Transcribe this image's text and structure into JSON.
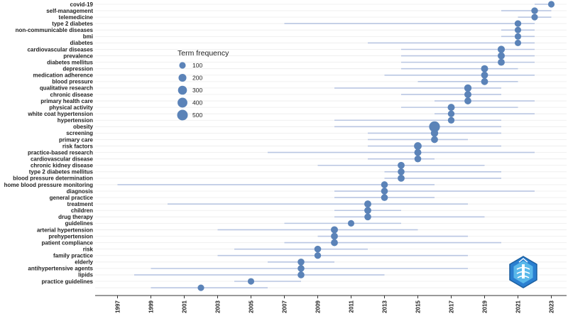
{
  "chart_data": {
    "type": "scatter",
    "chart_style": "trend-topics timeline (range line per term, dot at median year sized by frequency)",
    "xlim": [
      1996,
      2024
    ],
    "x_ticks": [
      1997,
      1999,
      2001,
      2003,
      2005,
      2007,
      2009,
      2011,
      2013,
      2015,
      2017,
      2019,
      2021,
      2023
    ],
    "colors": {
      "line": "#b9c6e2",
      "point": "#5b83b8",
      "grid": "#ececec",
      "axis": "#333333"
    },
    "legend": {
      "title": "Term frequency",
      "sizes": [
        100,
        200,
        300,
        400,
        500
      ],
      "position": "upper-left inside plot"
    },
    "terms": [
      {
        "term": "covid-19",
        "start": 2022,
        "median": 2023,
        "end": 2023,
        "freq": 100
      },
      {
        "term": "self-management",
        "start": 2020,
        "median": 2022,
        "end": 2023,
        "freq": 110
      },
      {
        "term": "telemedicine",
        "start": 2021,
        "median": 2022,
        "end": 2023,
        "freq": 100
      },
      {
        "term": "type 2 diabetes",
        "start": 2007,
        "median": 2021,
        "end": 2022,
        "freq": 110
      },
      {
        "term": "non-communicable diseases",
        "start": 2020,
        "median": 2021,
        "end": 2022,
        "freq": 100
      },
      {
        "term": "bmi",
        "start": 2020,
        "median": 2021,
        "end": 2022,
        "freq": 100
      },
      {
        "term": "diabetes",
        "start": 2012,
        "median": 2021,
        "end": 2022,
        "freq": 100
      },
      {
        "term": "cardiovascular diseases",
        "start": 2014,
        "median": 2020,
        "end": 2022,
        "freq": 150
      },
      {
        "term": "prevalence",
        "start": 2014,
        "median": 2020,
        "end": 2022,
        "freq": 140
      },
      {
        "term": "diabetes mellitus",
        "start": 2014,
        "median": 2020,
        "end": 2022,
        "freq": 130
      },
      {
        "term": "depression",
        "start": 2014,
        "median": 2019,
        "end": 2021,
        "freq": 140
      },
      {
        "term": "medication adherence",
        "start": 2013,
        "median": 2019,
        "end": 2022,
        "freq": 130
      },
      {
        "term": "blood pressure",
        "start": 2015,
        "median": 2019,
        "end": 2021,
        "freq": 130
      },
      {
        "term": "qualitative research",
        "start": 2010,
        "median": 2018,
        "end": 2020,
        "freq": 160
      },
      {
        "term": "chronic disease",
        "start": 2014,
        "median": 2018,
        "end": 2020,
        "freq": 140
      },
      {
        "term": "primary health care",
        "start": 2016,
        "median": 2018,
        "end": 2022,
        "freq": 130
      },
      {
        "term": "physical activity",
        "start": 2014,
        "median": 2017,
        "end": 2021,
        "freq": 140
      },
      {
        "term": "white coat hypertension",
        "start": 2016,
        "median": 2017,
        "end": 2022,
        "freq": 110
      },
      {
        "term": "hypertension",
        "start": 2010,
        "median": 2017,
        "end": 2020,
        "freq": 110
      },
      {
        "term": "obesity",
        "start": 2010,
        "median": 2016,
        "end": 2020,
        "freq": 520
      },
      {
        "term": "screening",
        "start": 2012,
        "median": 2016,
        "end": 2020,
        "freq": 160
      },
      {
        "term": "primary care",
        "start": 2012,
        "median": 2016,
        "end": 2018,
        "freq": 130
      },
      {
        "term": "risk factors",
        "start": 2012,
        "median": 2015,
        "end": 2020,
        "freq": 180
      },
      {
        "term": "practice-based research",
        "start": 2006,
        "median": 2015,
        "end": 2022,
        "freq": 140
      },
      {
        "term": "cardiovascular disease",
        "start": 2012,
        "median": 2015,
        "end": 2016,
        "freq": 120
      },
      {
        "term": "chronic kidney disease",
        "start": 2009,
        "median": 2014,
        "end": 2019,
        "freq": 130
      },
      {
        "term": "type 2 diabetes mellitus",
        "start": 2013,
        "median": 2014,
        "end": 2020,
        "freq": 120
      },
      {
        "term": "blood pressure determination",
        "start": 2013,
        "median": 2014,
        "end": 2020,
        "freq": 130
      },
      {
        "term": "home blood pressure monitoring",
        "start": 1997,
        "median": 2013,
        "end": 2016,
        "freq": 120
      },
      {
        "term": "diagnosis",
        "start": 2010,
        "median": 2013,
        "end": 2022,
        "freq": 120
      },
      {
        "term": "general practice",
        "start": 2010,
        "median": 2013,
        "end": 2016,
        "freq": 120
      },
      {
        "term": "treatment",
        "start": 2000,
        "median": 2012,
        "end": 2018,
        "freq": 140
      },
      {
        "term": "children",
        "start": 2010,
        "median": 2012,
        "end": 2014,
        "freq": 130
      },
      {
        "term": "drug therapy",
        "start": 2010,
        "median": 2012,
        "end": 2019,
        "freq": 120
      },
      {
        "term": "guidelines",
        "start": 2007,
        "median": 2011,
        "end": 2014,
        "freq": 100
      },
      {
        "term": "arterial hypertension",
        "start": 2003,
        "median": 2010,
        "end": 2015,
        "freq": 140
      },
      {
        "term": "prehypertension",
        "start": 2009,
        "median": 2010,
        "end": 2018,
        "freq": 130
      },
      {
        "term": "patient compliance",
        "start": 2007,
        "median": 2010,
        "end": 2020,
        "freq": 130
      },
      {
        "term": "risk",
        "start": 2004,
        "median": 2009,
        "end": 2012,
        "freq": 120
      },
      {
        "term": "family practice",
        "start": 2003,
        "median": 2009,
        "end": 2018,
        "freq": 110
      },
      {
        "term": "elderly",
        "start": 2006,
        "median": 2008,
        "end": 2010,
        "freq": 120
      },
      {
        "term": "antihypertensive agents",
        "start": 1999,
        "median": 2008,
        "end": 2018,
        "freq": 120
      },
      {
        "term": "lipids",
        "start": 1998,
        "median": 2008,
        "end": 2013,
        "freq": 120
      },
      {
        "term": "practice guidelines",
        "start": 2004,
        "median": 2005,
        "end": 2008,
        "freq": 100
      },
      {
        "term": "",
        "start": 1999,
        "median": 2002,
        "end": 2006,
        "freq": 100
      }
    ]
  }
}
